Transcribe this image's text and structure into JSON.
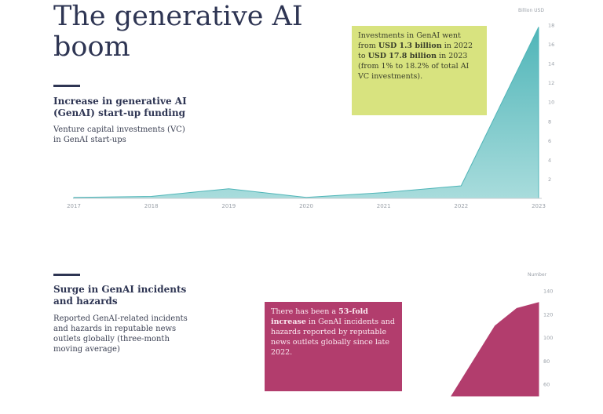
{
  "title": "The generative AI boom",
  "section1": {
    "heading": "Increase in generative AI (GenAI) start-up funding",
    "sub": "Venture capital investments (VC) in GenAI start-ups",
    "callout": {
      "pre": "Investments in GenAI went from ",
      "bold1": "USD 1.3 billion",
      "mid1": " in 2022 to ",
      "bold2": "USD 17.8 billion",
      "post": " in 2023 (from 1% to 18.2% of total AI VC investments)."
    }
  },
  "section2": {
    "heading": "Surge in GenAI incidents and hazards",
    "sub": "Reported GenAI-related incidents and hazards in reputable news outlets globally (three-month moving average)",
    "callout": {
      "pre": "There has been a ",
      "bold": "53-fold increase",
      "post": " in GenAI incidents and hazards reported by reputable news outlets globally since late 2022."
    }
  },
  "colors": {
    "teal": "#4fb5b8",
    "magenta": "#b23d6d",
    "lime": "#d8e37f",
    "navy": "#2e3553"
  },
  "chart_data": [
    {
      "type": "area",
      "ylabel": "Billion USD",
      "x": [
        "2017",
        "2018",
        "2019",
        "2020",
        "2021",
        "2022",
        "2023"
      ],
      "values": [
        0.1,
        0.2,
        1.0,
        0.1,
        0.6,
        1.3,
        17.8
      ],
      "ylim": [
        0,
        18
      ],
      "yticks": [
        "2",
        "4",
        "6",
        "8",
        "10",
        "12",
        "14",
        "16",
        "18"
      ],
      "color": "#4fb5b8"
    },
    {
      "type": "area",
      "ylabel": "Number",
      "values": [
        50,
        80,
        110,
        125,
        130
      ],
      "ylim": [
        50,
        140
      ],
      "yticks": [
        "60",
        "80",
        "100",
        "120",
        "140"
      ],
      "color": "#b23d6d"
    }
  ]
}
